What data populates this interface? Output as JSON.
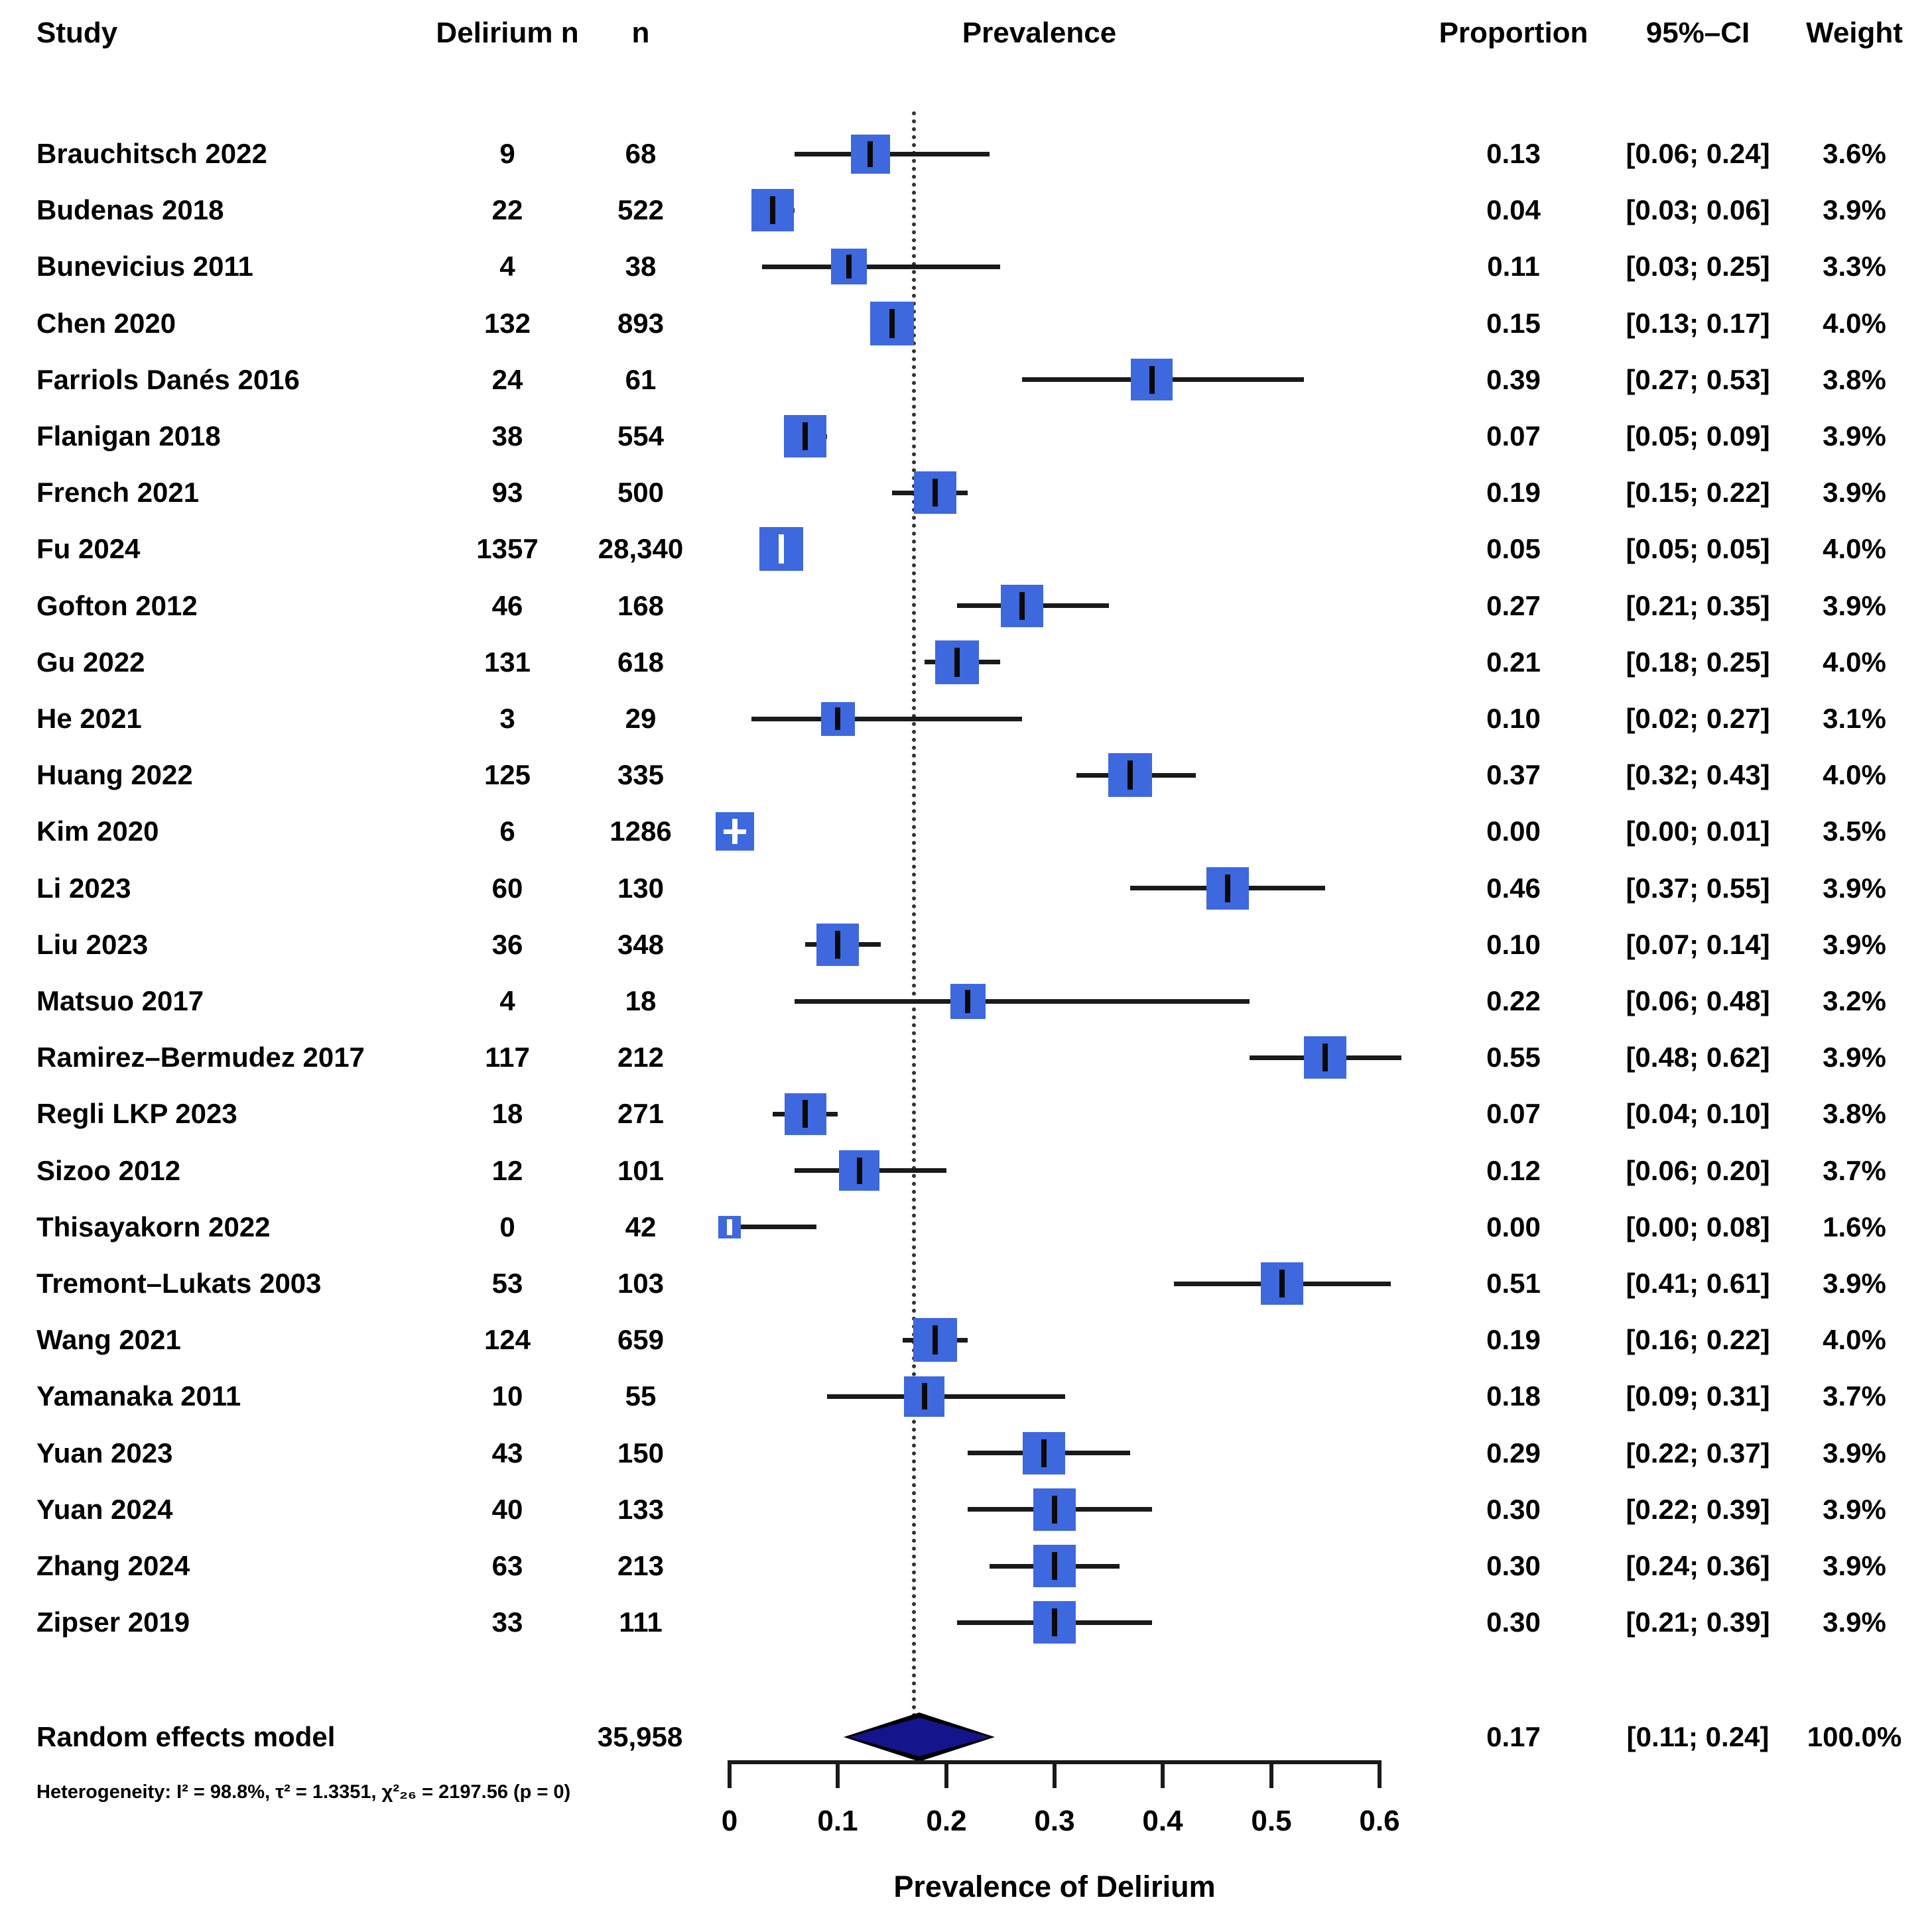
{
  "columns": {
    "study": "Study",
    "delirium_n": "Delirium n",
    "n": "n",
    "prevalence": "Prevalence",
    "proportion": "Proportion",
    "ci": "95%–CI",
    "weight": "Weight"
  },
  "chart_data": {
    "type": "forest",
    "title": "",
    "xlabel": "Prevalence of Delirium",
    "axis": {
      "min": 0,
      "max": 0.6,
      "ticks": [
        "0",
        "0.1",
        "0.2",
        "0.3",
        "0.4",
        "0.5",
        "0.6"
      ],
      "grid": false
    },
    "reference_line": 0.17,
    "colors": {
      "square": "#3E68DD",
      "diamond": "#14148C",
      "line": "#1a1a1a",
      "text": "#000000"
    },
    "studies": [
      {
        "name": "Brauchitsch 2022",
        "delirium_n": "9",
        "n": "68",
        "proportion": "0.13",
        "ci": "[0.06; 0.24]",
        "weight": "3.6%",
        "est": 0.13,
        "lo": 0.06,
        "hi": 0.24,
        "w": 3.6,
        "marker": "black"
      },
      {
        "name": "Budenas 2018",
        "delirium_n": "22",
        "n": "522",
        "proportion": "0.04",
        "ci": "[0.03; 0.06]",
        "weight": "3.9%",
        "est": 0.04,
        "lo": 0.03,
        "hi": 0.06,
        "w": 3.9,
        "marker": "black"
      },
      {
        "name": "Bunevicius 2011",
        "delirium_n": "4",
        "n": "38",
        "proportion": "0.11",
        "ci": "[0.03; 0.25]",
        "weight": "3.3%",
        "est": 0.11,
        "lo": 0.03,
        "hi": 0.25,
        "w": 3.3,
        "marker": "black"
      },
      {
        "name": "Chen 2020",
        "delirium_n": "132",
        "n": "893",
        "proportion": "0.15",
        "ci": "[0.13; 0.17]",
        "weight": "4.0%",
        "est": 0.15,
        "lo": 0.13,
        "hi": 0.17,
        "w": 4.0,
        "marker": "black"
      },
      {
        "name": "Farriols Danés 2016",
        "delirium_n": "24",
        "n": "61",
        "proportion": "0.39",
        "ci": "[0.27; 0.53]",
        "weight": "3.8%",
        "est": 0.39,
        "lo": 0.27,
        "hi": 0.53,
        "w": 3.8,
        "marker": "black"
      },
      {
        "name": "Flanigan 2018",
        "delirium_n": "38",
        "n": "554",
        "proportion": "0.07",
        "ci": "[0.05; 0.09]",
        "weight": "3.9%",
        "est": 0.07,
        "lo": 0.05,
        "hi": 0.09,
        "w": 3.9,
        "marker": "black"
      },
      {
        "name": "French 2021",
        "delirium_n": "93",
        "n": "500",
        "proportion": "0.19",
        "ci": "[0.15; 0.22]",
        "weight": "3.9%",
        "est": 0.19,
        "lo": 0.15,
        "hi": 0.22,
        "w": 3.9,
        "marker": "black"
      },
      {
        "name": "Fu 2024",
        "delirium_n": "1357",
        "n": "28,340",
        "proportion": "0.05",
        "ci": "[0.05; 0.05]",
        "weight": "4.0%",
        "est": 0.048,
        "lo": 0.047,
        "hi": 0.05,
        "w": 4.0,
        "marker": "white"
      },
      {
        "name": "Gofton 2012",
        "delirium_n": "46",
        "n": "168",
        "proportion": "0.27",
        "ci": "[0.21; 0.35]",
        "weight": "3.9%",
        "est": 0.27,
        "lo": 0.21,
        "hi": 0.35,
        "w": 3.9,
        "marker": "black"
      },
      {
        "name": "Gu 2022",
        "delirium_n": "131",
        "n": "618",
        "proportion": "0.21",
        "ci": "[0.18; 0.25]",
        "weight": "4.0%",
        "est": 0.21,
        "lo": 0.18,
        "hi": 0.25,
        "w": 4.0,
        "marker": "black"
      },
      {
        "name": "He 2021",
        "delirium_n": "3",
        "n": "29",
        "proportion": "0.10",
        "ci": "[0.02; 0.27]",
        "weight": "3.1%",
        "est": 0.1,
        "lo": 0.02,
        "hi": 0.27,
        "w": 3.1,
        "marker": "black"
      },
      {
        "name": "Huang 2022",
        "delirium_n": "125",
        "n": "335",
        "proportion": "0.37",
        "ci": "[0.32; 0.43]",
        "weight": "4.0%",
        "est": 0.37,
        "lo": 0.32,
        "hi": 0.43,
        "w": 4.0,
        "marker": "black"
      },
      {
        "name": "Kim 2020",
        "delirium_n": "6",
        "n": "1286",
        "proportion": "0.00",
        "ci": "[0.00; 0.01]",
        "weight": "3.5%",
        "est": 0.005,
        "lo": 0.0,
        "hi": 0.01,
        "w": 3.5,
        "marker": "white-plus"
      },
      {
        "name": "Li 2023",
        "delirium_n": "60",
        "n": "130",
        "proportion": "0.46",
        "ci": "[0.37; 0.55]",
        "weight": "3.9%",
        "est": 0.46,
        "lo": 0.37,
        "hi": 0.55,
        "w": 3.9,
        "marker": "black"
      },
      {
        "name": "Liu 2023",
        "delirium_n": "36",
        "n": "348",
        "proportion": "0.10",
        "ci": "[0.07; 0.14]",
        "weight": "3.9%",
        "est": 0.1,
        "lo": 0.07,
        "hi": 0.14,
        "w": 3.9,
        "marker": "black"
      },
      {
        "name": "Matsuo 2017",
        "delirium_n": "4",
        "n": "18",
        "proportion": "0.22",
        "ci": "[0.06; 0.48]",
        "weight": "3.2%",
        "est": 0.22,
        "lo": 0.06,
        "hi": 0.48,
        "w": 3.2,
        "marker": "black"
      },
      {
        "name": "Ramirez–Bermudez 2017",
        "delirium_n": "117",
        "n": "212",
        "proportion": "0.55",
        "ci": "[0.48; 0.62]",
        "weight": "3.9%",
        "est": 0.55,
        "lo": 0.48,
        "hi": 0.62,
        "w": 3.9,
        "marker": "black"
      },
      {
        "name": "Regli LKP 2023",
        "delirium_n": "18",
        "n": "271",
        "proportion": "0.07",
        "ci": "[0.04; 0.10]",
        "weight": "3.8%",
        "est": 0.07,
        "lo": 0.04,
        "hi": 0.1,
        "w": 3.8,
        "marker": "black"
      },
      {
        "name": "Sizoo 2012",
        "delirium_n": "12",
        "n": "101",
        "proportion": "0.12",
        "ci": "[0.06; 0.20]",
        "weight": "3.7%",
        "est": 0.12,
        "lo": 0.06,
        "hi": 0.2,
        "w": 3.7,
        "marker": "black"
      },
      {
        "name": "Thisayakorn 2022",
        "delirium_n": "0",
        "n": "42",
        "proportion": "0.00",
        "ci": "[0.00; 0.08]",
        "weight": "1.6%",
        "est": 0.0,
        "lo": 0.0,
        "hi": 0.08,
        "w": 1.6,
        "marker": "white"
      },
      {
        "name": "Tremont–Lukats 2003",
        "delirium_n": "53",
        "n": "103",
        "proportion": "0.51",
        "ci": "[0.41; 0.61]",
        "weight": "3.9%",
        "est": 0.51,
        "lo": 0.41,
        "hi": 0.61,
        "w": 3.9,
        "marker": "black"
      },
      {
        "name": "Wang 2021",
        "delirium_n": "124",
        "n": "659",
        "proportion": "0.19",
        "ci": "[0.16; 0.22]",
        "weight": "4.0%",
        "est": 0.19,
        "lo": 0.16,
        "hi": 0.22,
        "w": 4.0,
        "marker": "black"
      },
      {
        "name": "Yamanaka 2011",
        "delirium_n": "10",
        "n": "55",
        "proportion": "0.18",
        "ci": "[0.09; 0.31]",
        "weight": "3.7%",
        "est": 0.18,
        "lo": 0.09,
        "hi": 0.31,
        "w": 3.7,
        "marker": "black"
      },
      {
        "name": "Yuan 2023",
        "delirium_n": "43",
        "n": "150",
        "proportion": "0.29",
        "ci": "[0.22; 0.37]",
        "weight": "3.9%",
        "est": 0.29,
        "lo": 0.22,
        "hi": 0.37,
        "w": 3.9,
        "marker": "black"
      },
      {
        "name": "Yuan 2024",
        "delirium_n": "40",
        "n": "133",
        "proportion": "0.30",
        "ci": "[0.22; 0.39]",
        "weight": "3.9%",
        "est": 0.3,
        "lo": 0.22,
        "hi": 0.39,
        "w": 3.9,
        "marker": "black"
      },
      {
        "name": "Zhang 2024",
        "delirium_n": "63",
        "n": "213",
        "proportion": "0.30",
        "ci": "[0.24; 0.36]",
        "weight": "3.9%",
        "est": 0.3,
        "lo": 0.24,
        "hi": 0.36,
        "w": 3.9,
        "marker": "black"
      },
      {
        "name": "Zipser 2019",
        "delirium_n": "33",
        "n": "111",
        "proportion": "0.30",
        "ci": "[0.21; 0.39]",
        "weight": "3.9%",
        "est": 0.3,
        "lo": 0.21,
        "hi": 0.39,
        "w": 3.9,
        "marker": "black"
      }
    ],
    "pooled": {
      "label": "Random effects model",
      "n": "35,958",
      "proportion": "0.17",
      "ci": "[0.11; 0.24]",
      "weight": "100.0%",
      "est": 0.17,
      "lo": 0.11,
      "hi": 0.24
    },
    "heterogeneity": "Heterogeneity: I² = 98.8%, τ² = 1.3351, χ²₂₆ = 2197.56 (p = 0)"
  }
}
